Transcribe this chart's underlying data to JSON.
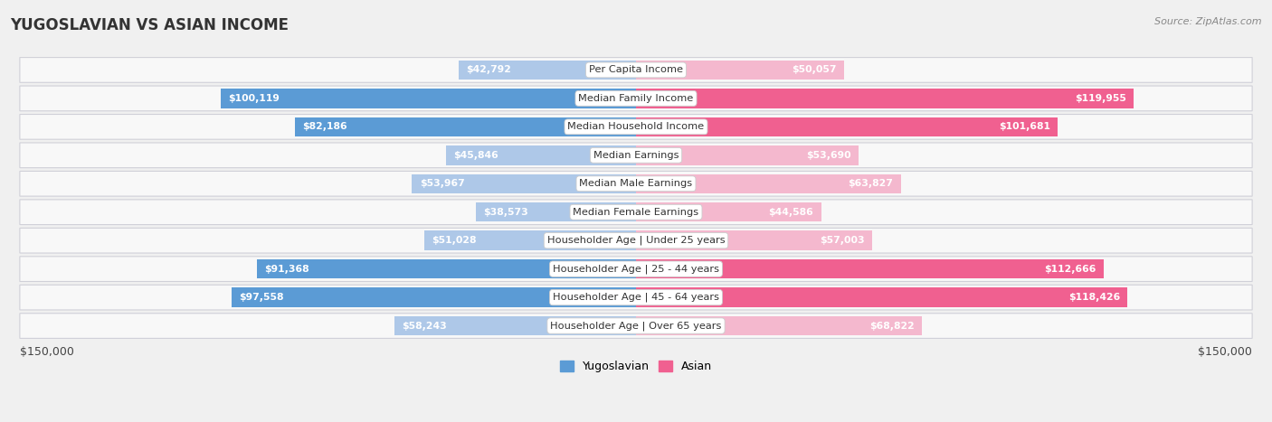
{
  "title": "YUGOSLAVIAN VS ASIAN INCOME",
  "source": "Source: ZipAtlas.com",
  "categories": [
    "Per Capita Income",
    "Median Family Income",
    "Median Household Income",
    "Median Earnings",
    "Median Male Earnings",
    "Median Female Earnings",
    "Householder Age | Under 25 years",
    "Householder Age | 25 - 44 years",
    "Householder Age | 45 - 64 years",
    "Householder Age | Over 65 years"
  ],
  "yugoslavian_values": [
    42792,
    100119,
    82186,
    45846,
    53967,
    38573,
    51028,
    91368,
    97558,
    58243
  ],
  "asian_values": [
    50057,
    119955,
    101681,
    53690,
    63827,
    44586,
    57003,
    112666,
    118426,
    68822
  ],
  "yugoslavian_labels": [
    "$42,792",
    "$100,119",
    "$82,186",
    "$45,846",
    "$53,967",
    "$38,573",
    "$51,028",
    "$91,368",
    "$97,558",
    "$58,243"
  ],
  "asian_labels": [
    "$50,057",
    "$119,955",
    "$101,681",
    "$53,690",
    "$63,827",
    "$44,586",
    "$57,003",
    "$112,666",
    "$118,426",
    "$68,822"
  ],
  "yug_color_light": "#aec8e8",
  "yug_color_dark": "#5b9bd5",
  "asian_color_light": "#f4b8ce",
  "asian_color_dark": "#f06090",
  "max_val": 150000,
  "background_color": "#f0f0f0",
  "row_bg": "#f8f8f8",
  "xlabel_left": "$150,000",
  "xlabel_right": "$150,000",
  "legend_yug": "Yugoslavian",
  "legend_asian": "Asian",
  "threshold_dark": 70000
}
